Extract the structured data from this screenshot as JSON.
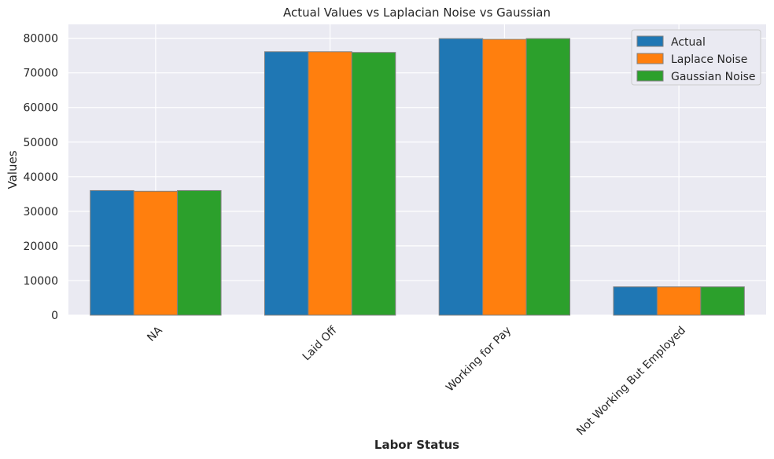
{
  "chart_data": {
    "type": "bar",
    "title": "Actual Values vs Laplacian Noise vs Gaussian",
    "xlabel": "Labor Status",
    "ylabel": "Values",
    "categories": [
      "NA",
      "Laid Off",
      "Working for Pay",
      "Not Working But Employed"
    ],
    "series": [
      {
        "name": "Actual",
        "color": "#1f77b4",
        "values": [
          36000,
          76100,
          79900,
          8200
        ]
      },
      {
        "name": "Laplace Noise",
        "color": "#ff7f0e",
        "values": [
          35800,
          76100,
          79700,
          8200
        ]
      },
      {
        "name": "Gaussian Noise",
        "color": "#2ca02c",
        "values": [
          36000,
          75900,
          79900,
          8200
        ]
      }
    ],
    "ylim": [
      0,
      84000
    ],
    "yticks": [
      0,
      10000,
      20000,
      30000,
      40000,
      50000,
      60000,
      70000,
      80000
    ],
    "grid": true,
    "legend_position": "top-right",
    "background": "#eaeaf2"
  }
}
